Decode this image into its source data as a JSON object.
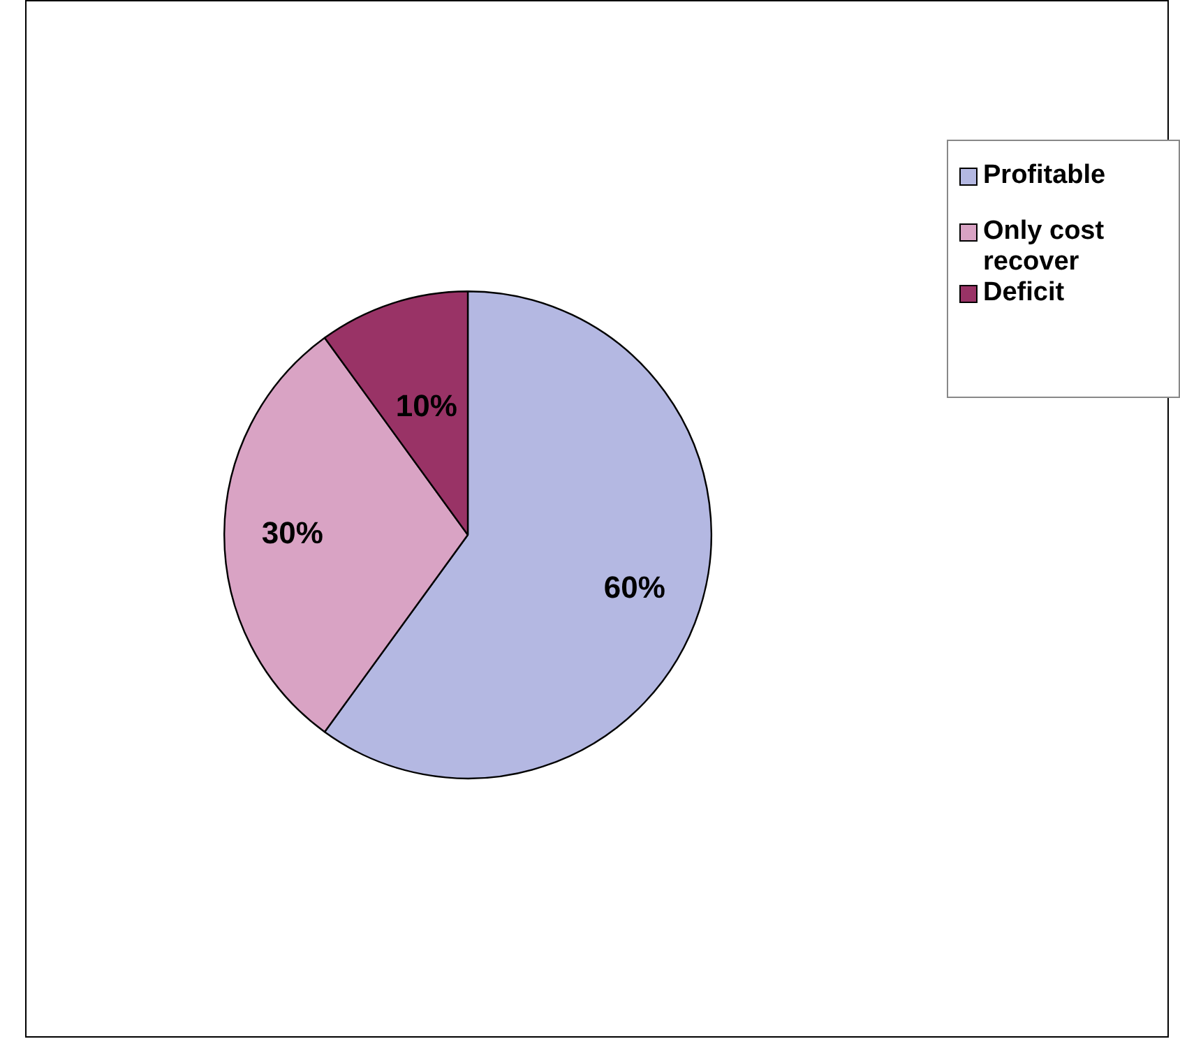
{
  "chart_data": {
    "type": "pie",
    "categories": [
      "Profitable",
      "Only cost recover",
      "Deficit"
    ],
    "values": [
      60,
      30,
      10
    ],
    "colors": [
      "#b4b8e2",
      "#d9a3c4",
      "#993366"
    ],
    "value_labels": [
      "60%",
      "30%",
      "10%"
    ],
    "legend": "right"
  }
}
